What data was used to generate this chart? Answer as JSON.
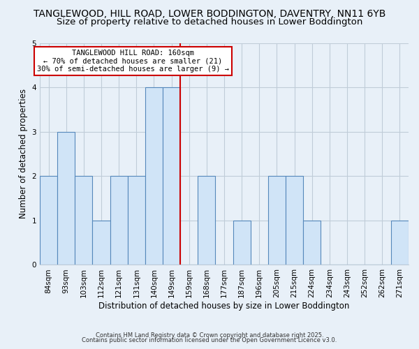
{
  "title": "TANGLEWOOD, HILL ROAD, LOWER BODDINGTON, DAVENTRY, NN11 6YB",
  "subtitle": "Size of property relative to detached houses in Lower Boddington",
  "xlabel": "Distribution of detached houses by size in Lower Boddington",
  "ylabel": "Number of detached properties",
  "footer1": "Contains HM Land Registry data © Crown copyright and database right 2025.",
  "footer2": "Contains public sector information licensed under the Open Government Licence v3.0.",
  "bar_labels": [
    "84sqm",
    "93sqm",
    "103sqm",
    "112sqm",
    "121sqm",
    "131sqm",
    "140sqm",
    "149sqm",
    "159sqm",
    "168sqm",
    "177sqm",
    "187sqm",
    "196sqm",
    "205sqm",
    "215sqm",
    "224sqm",
    "234sqm",
    "243sqm",
    "252sqm",
    "262sqm",
    "271sqm"
  ],
  "bar_values": [
    2,
    3,
    2,
    1,
    2,
    2,
    4,
    4,
    0,
    2,
    0,
    1,
    0,
    2,
    2,
    1,
    0,
    0,
    0,
    0,
    1
  ],
  "bar_color": "#d0e4f7",
  "bar_edgecolor": "#5588bb",
  "reference_line_x_label": "159sqm",
  "reference_line_color": "#cc0000",
  "annotation_title": "TANGLEWOOD HILL ROAD: 160sqm",
  "annotation_line1": "← 70% of detached houses are smaller (21)",
  "annotation_line2": "30% of semi-detached houses are larger (9) →",
  "ylim": [
    0,
    5
  ],
  "yticks": [
    0,
    1,
    2,
    3,
    4,
    5
  ],
  "bg_color": "#e8f0f8",
  "plot_bg_color": "#e8f0f8",
  "title_fontsize": 10,
  "subtitle_fontsize": 9.5,
  "axis_label_fontsize": 8.5,
  "tick_fontsize": 7.5,
  "grid_color": "#c0ccd8"
}
